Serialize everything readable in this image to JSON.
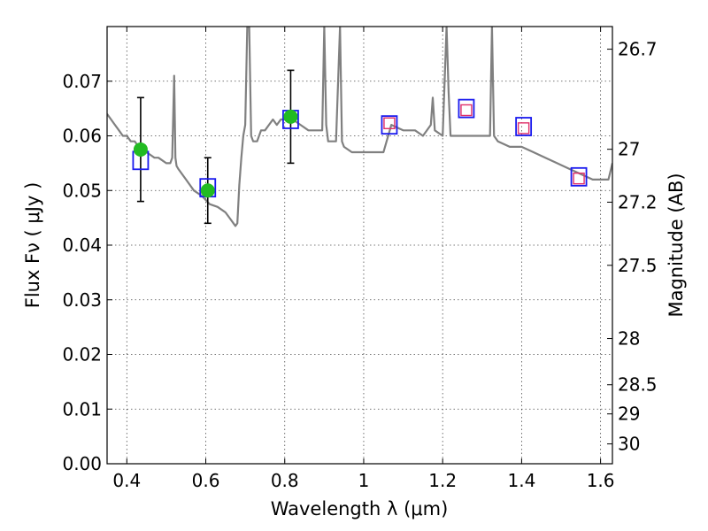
{
  "chart_data": {
    "type": "line",
    "xlabel": "Wavelength  λ (μm)",
    "ylabel": "Flux  Fν  ( μJy )",
    "ylabel_right": "Magnitude (AB)",
    "xlim": [
      0.35,
      1.63
    ],
    "ylim": [
      0.0,
      0.08
    ],
    "x_ticks": [
      0.4,
      0.6,
      0.8,
      1.0,
      1.2,
      1.4,
      1.6
    ],
    "x_tick_labels": [
      "0.4",
      "0.6",
      "0.8",
      "1",
      "1.2",
      "1.4",
      "1.6"
    ],
    "y_ticks": [
      0.0,
      0.01,
      0.02,
      0.03,
      0.04,
      0.05,
      0.06,
      0.07
    ],
    "y_tick_labels": [
      "0.00",
      "0.01",
      "0.02",
      "0.03",
      "0.04",
      "0.05",
      "0.06",
      "0.07"
    ],
    "right_axis": {
      "labels": [
        "26.7",
        "27",
        "27.2",
        "27.5",
        "28",
        "28.5",
        "29",
        "30"
      ],
      "mag_values": [
        26.7,
        27.0,
        27.2,
        27.5,
        28.0,
        28.5,
        29.0,
        30.0
      ]
    },
    "grid": true,
    "colors": {
      "spectrum": "#808080",
      "observed": "#22bb22",
      "model_box": "#1a1aee",
      "ir_box": "#e0306a",
      "errorbar": "#000000"
    },
    "series": [
      {
        "kind": "spectrum",
        "x": [
          0.35,
          0.36,
          0.37,
          0.38,
          0.39,
          0.4,
          0.41,
          0.42,
          0.43,
          0.44,
          0.45,
          0.46,
          0.47,
          0.48,
          0.49,
          0.5,
          0.51,
          0.515,
          0.52,
          0.523,
          0.526,
          0.53,
          0.55,
          0.57,
          0.59,
          0.61,
          0.63,
          0.65,
          0.66,
          0.67,
          0.675,
          0.68,
          0.685,
          0.69,
          0.695,
          0.7,
          0.705,
          0.71,
          0.715,
          0.72,
          0.73,
          0.74,
          0.75,
          0.76,
          0.77,
          0.78,
          0.79,
          0.8,
          0.81,
          0.82,
          0.84,
          0.86,
          0.88,
          0.895,
          0.9,
          0.905,
          0.91,
          0.93,
          0.94,
          0.945,
          0.95,
          0.97,
          1.0,
          1.03,
          1.05,
          1.07,
          1.1,
          1.13,
          1.15,
          1.17,
          1.175,
          1.18,
          1.2,
          1.21,
          1.215,
          1.22,
          1.24,
          1.26,
          1.28,
          1.3,
          1.32,
          1.325,
          1.33,
          1.34,
          1.37,
          1.4,
          1.43,
          1.46,
          1.49,
          1.52,
          1.55,
          1.58,
          1.6,
          1.62,
          1.63
        ],
        "y": [
          0.064,
          0.063,
          0.062,
          0.061,
          0.06,
          0.06,
          0.059,
          0.059,
          0.058,
          0.058,
          0.057,
          0.0565,
          0.056,
          0.056,
          0.0555,
          0.055,
          0.055,
          0.056,
          0.071,
          0.056,
          0.0545,
          0.054,
          0.052,
          0.05,
          0.049,
          0.0475,
          0.047,
          0.046,
          0.045,
          0.044,
          0.0435,
          0.044,
          0.051,
          0.056,
          0.06,
          0.062,
          0.08,
          0.08,
          0.06,
          0.059,
          0.059,
          0.061,
          0.061,
          0.062,
          0.063,
          0.062,
          0.063,
          0.063,
          0.064,
          0.063,
          0.062,
          0.061,
          0.061,
          0.061,
          0.08,
          0.062,
          0.059,
          0.059,
          0.08,
          0.059,
          0.058,
          0.057,
          0.057,
          0.057,
          0.057,
          0.062,
          0.061,
          0.061,
          0.06,
          0.062,
          0.067,
          0.061,
          0.06,
          0.08,
          0.068,
          0.06,
          0.06,
          0.06,
          0.06,
          0.06,
          0.06,
          0.08,
          0.06,
          0.059,
          0.058,
          0.058,
          0.057,
          0.056,
          0.055,
          0.054,
          0.053,
          0.052,
          0.052,
          0.052,
          0.055
        ]
      },
      {
        "kind": "model_photometry_boxes",
        "x": [
          0.435,
          0.605,
          0.815,
          1.065,
          1.26,
          1.405,
          1.545
        ],
        "y": [
          0.0555,
          0.0505,
          0.063,
          0.062,
          0.065,
          0.0617,
          0.0525
        ]
      },
      {
        "kind": "ir_photometry_boxes",
        "x": [
          1.065,
          1.26,
          1.405,
          1.545
        ],
        "y": [
          0.0623,
          0.0647,
          0.0614,
          0.0522
        ]
      },
      {
        "kind": "observed_points",
        "x": [
          0.435,
          0.605,
          0.815
        ],
        "y": [
          0.0575,
          0.05,
          0.0635
        ],
        "yerr_low": [
          0.048,
          0.044,
          0.055
        ],
        "yerr_high": [
          0.067,
          0.056,
          0.072
        ]
      }
    ]
  }
}
